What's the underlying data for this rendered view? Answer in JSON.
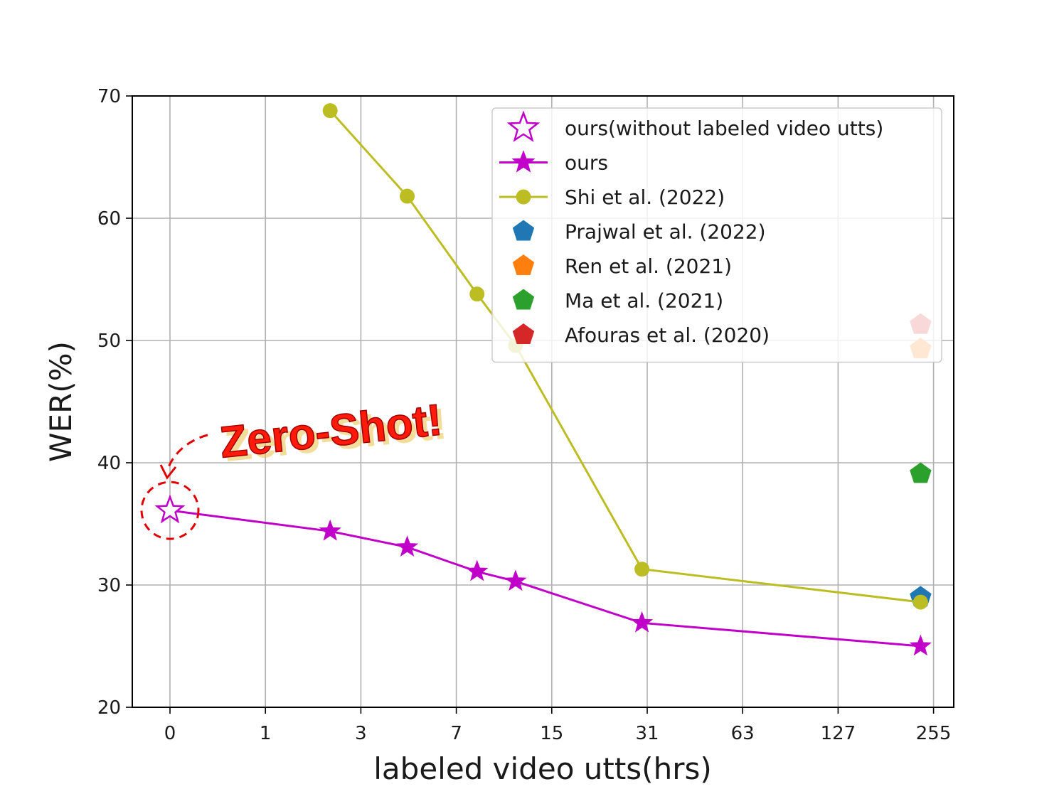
{
  "chart_data": {
    "type": "line",
    "xlabel": "labeled video utts(hrs)",
    "ylabel": "WER(%)",
    "x_ticks": [
      "0",
      "1",
      "3",
      "7",
      "15",
      "31",
      "63",
      "127",
      "255"
    ],
    "y_ticks": [
      "20",
      "30",
      "40",
      "50",
      "60",
      "70"
    ],
    "ylim": [
      20,
      70
    ],
    "x_scale": "log2(1+x)",
    "grid": true,
    "legend_position": "top-right",
    "annotation": "Zero-Shot!",
    "series": [
      {
        "name": "ours(without labeled video utts)",
        "color": "#c000c8",
        "marker": "star-open",
        "line": false,
        "points": [
          {
            "x": 0,
            "y": 36.1
          }
        ]
      },
      {
        "name": "ours",
        "color": "#c000c8",
        "marker": "star",
        "line": true,
        "points": [
          {
            "x": 0,
            "y": 36.1
          },
          {
            "x": 2.2,
            "y": 34.4
          },
          {
            "x": 4.6,
            "y": 33.1
          },
          {
            "x": 8.3,
            "y": 31.1
          },
          {
            "x": 11.3,
            "y": 30.3
          },
          {
            "x": 29.8,
            "y": 26.9
          },
          {
            "x": 232,
            "y": 25.0
          }
        ]
      },
      {
        "name": "Shi et al. (2022)",
        "color": "#bcbd22",
        "marker": "circle",
        "line": true,
        "points": [
          {
            "x": 2.2,
            "y": 68.8
          },
          {
            "x": 4.6,
            "y": 61.8
          },
          {
            "x": 8.3,
            "y": 53.8
          },
          {
            "x": 11.3,
            "y": 49.6
          },
          {
            "x": 29.8,
            "y": 31.3
          },
          {
            "x": 232,
            "y": 28.6
          }
        ]
      },
      {
        "name": "Prajwal et al. (2022)",
        "color": "#1f77b4",
        "marker": "pentagon",
        "line": false,
        "points": [
          {
            "x": 232,
            "y": 29.0
          }
        ]
      },
      {
        "name": "Ren et al. (2021)",
        "color": "#ff7f0e",
        "marker": "pentagon",
        "line": false,
        "points": [
          {
            "x": 232,
            "y": 49.3
          }
        ]
      },
      {
        "name": "Ma et al. (2021)",
        "color": "#2ca02c",
        "marker": "pentagon",
        "line": false,
        "points": [
          {
            "x": 232,
            "y": 39.1
          }
        ]
      },
      {
        "name": "Afouras et al. (2020)",
        "color": "#d62728",
        "marker": "pentagon",
        "line": false,
        "points": [
          {
            "x": 232,
            "y": 51.3
          }
        ]
      }
    ]
  }
}
